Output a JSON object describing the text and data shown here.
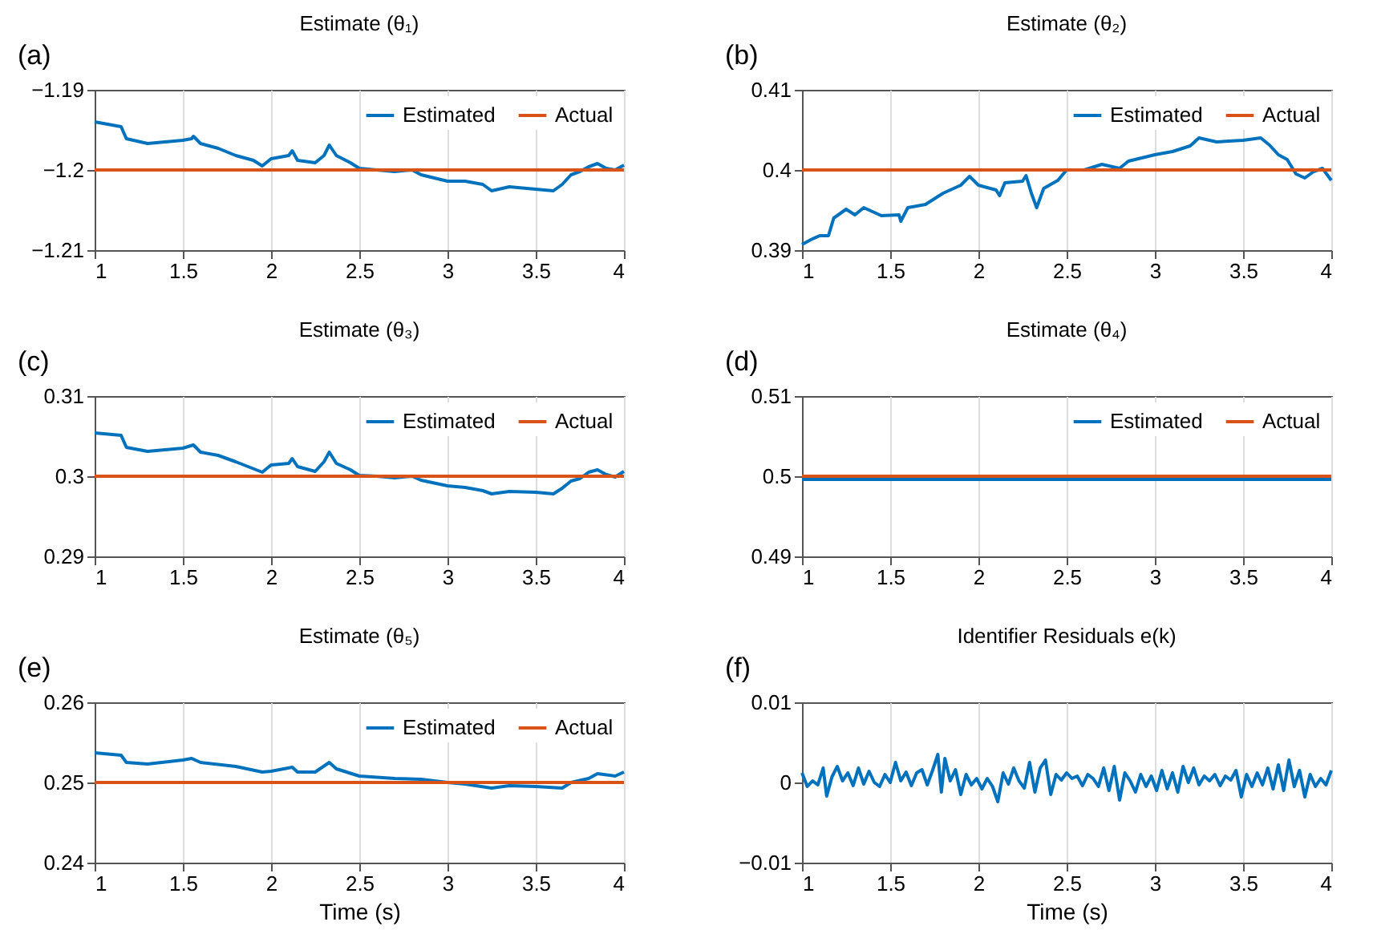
{
  "chart_data": [
    {
      "type": "line",
      "title": "Estimate (θ₁)",
      "annotations": [
        "(a)"
      ],
      "legend": "top right",
      "grid": "x",
      "xlim": [
        1,
        4
      ],
      "xticks": [
        1,
        1.5,
        2,
        2.5,
        3,
        3.5,
        4
      ],
      "ylim": [
        -1.21,
        -1.19
      ],
      "yticks": [
        {
          "value": -1.21,
          "label": "−1.21"
        },
        {
          "value": -1.2,
          "label": "−1.2"
        },
        {
          "value": -1.19,
          "label": "−1.19"
        }
      ],
      "x": [
        1.0,
        1.1,
        1.15,
        1.18,
        1.3,
        1.5,
        1.55,
        1.56,
        1.6,
        1.7,
        1.8,
        1.9,
        1.95,
        2.0,
        2.1,
        2.12,
        2.15,
        2.25,
        2.3,
        2.33,
        2.37,
        2.45,
        2.5,
        2.6,
        2.7,
        2.8,
        2.85,
        3.0,
        3.1,
        3.2,
        3.25,
        3.35,
        3.5,
        3.6,
        3.65,
        3.7,
        3.75,
        3.8,
        3.85,
        3.9,
        3.95,
        4.0
      ],
      "series": [
        {
          "name": "Estimated",
          "color": "#0072bd",
          "values": [
            -1.194,
            -1.1944,
            -1.1946,
            -1.1961,
            -1.1967,
            -1.1963,
            -1.1961,
            -1.1958,
            -1.1967,
            -1.1973,
            -1.1982,
            -1.1988,
            -1.1995,
            -1.1986,
            -1.1982,
            -1.1976,
            -1.1988,
            -1.1991,
            -1.1982,
            -1.1969,
            -1.1982,
            -1.1991,
            -1.1998,
            -1.2,
            -1.2002,
            -1.2,
            -1.2006,
            -1.2014,
            -1.2014,
            -1.2018,
            -1.2026,
            -1.2021,
            -1.2024,
            -1.2026,
            -1.2018,
            -1.2006,
            -1.2002,
            -1.1996,
            -1.1992,
            -1.1998,
            -1.2,
            -1.1994
          ]
        },
        {
          "name": "Actual",
          "color": "#d95319",
          "values": [
            -1.2,
            -1.2,
            -1.2,
            -1.2,
            -1.2,
            -1.2,
            -1.2,
            -1.2,
            -1.2,
            -1.2,
            -1.2,
            -1.2,
            -1.2,
            -1.2,
            -1.2,
            -1.2,
            -1.2,
            -1.2,
            -1.2,
            -1.2,
            -1.2,
            -1.2,
            -1.2,
            -1.2,
            -1.2,
            -1.2,
            -1.2,
            -1.2,
            -1.2,
            -1.2,
            -1.2,
            -1.2,
            -1.2,
            -1.2,
            -1.2,
            -1.2,
            -1.2,
            -1.2,
            -1.2,
            -1.2,
            -1.2,
            -1.2
          ]
        }
      ]
    },
    {
      "type": "line",
      "title": "Estimate (θ₂)",
      "annotations": [
        "(b)"
      ],
      "legend": "top right",
      "grid": "x",
      "xlim": [
        1,
        4
      ],
      "xticks": [
        1,
        1.5,
        2,
        2.5,
        3,
        3.5,
        4
      ],
      "ylim": [
        0.39,
        0.41
      ],
      "yticks": [
        0.39,
        0.4,
        0.41
      ],
      "x": [
        1.0,
        1.05,
        1.1,
        1.15,
        1.18,
        1.25,
        1.3,
        1.35,
        1.45,
        1.55,
        1.56,
        1.6,
        1.7,
        1.8,
        1.9,
        1.95,
        2.0,
        2.1,
        2.12,
        2.15,
        2.25,
        2.27,
        2.3,
        2.33,
        2.37,
        2.45,
        2.5,
        2.6,
        2.7,
        2.8,
        2.85,
        3.0,
        3.1,
        3.2,
        3.25,
        3.35,
        3.5,
        3.6,
        3.65,
        3.7,
        3.75,
        3.8,
        3.85,
        3.9,
        3.95,
        4.0
      ],
      "series": [
        {
          "name": "Estimated",
          "color": "#0072bd",
          "values": [
            0.3907,
            0.3913,
            0.3918,
            0.3918,
            0.394,
            0.3951,
            0.3944,
            0.3953,
            0.3943,
            0.3944,
            0.3936,
            0.3953,
            0.3957,
            0.3971,
            0.3981,
            0.3992,
            0.3981,
            0.3975,
            0.3968,
            0.3984,
            0.3986,
            0.3993,
            0.3971,
            0.3953,
            0.3977,
            0.3987,
            0.4,
            0.4,
            0.4007,
            0.4002,
            0.4011,
            0.4019,
            0.4023,
            0.403,
            0.404,
            0.4035,
            0.4037,
            0.404,
            0.4031,
            0.4019,
            0.4013,
            0.3995,
            0.399,
            0.3998,
            0.4002,
            0.3987
          ]
        },
        {
          "name": "Actual",
          "color": "#d95319",
          "values": [
            0.4,
            0.4,
            0.4,
            0.4,
            0.4,
            0.4,
            0.4,
            0.4,
            0.4,
            0.4,
            0.4,
            0.4,
            0.4,
            0.4,
            0.4,
            0.4,
            0.4,
            0.4,
            0.4,
            0.4,
            0.4,
            0.4,
            0.4,
            0.4,
            0.4,
            0.4,
            0.4,
            0.4,
            0.4,
            0.4,
            0.4,
            0.4,
            0.4,
            0.4,
            0.4,
            0.4,
            0.4,
            0.4,
            0.4,
            0.4,
            0.4,
            0.4,
            0.4,
            0.4,
            0.4,
            0.4
          ]
        }
      ]
    },
    {
      "type": "line",
      "title": "Estimate (θ₃)",
      "annotations": [
        "(c)"
      ],
      "legend": "top right",
      "grid": "x",
      "xlim": [
        1,
        4
      ],
      "xticks": [
        1,
        1.5,
        2,
        2.5,
        3,
        3.5,
        4
      ],
      "ylim": [
        0.29,
        0.31
      ],
      "yticks": [
        0.29,
        0.3,
        0.31
      ],
      "x": [
        1.0,
        1.15,
        1.18,
        1.3,
        1.5,
        1.56,
        1.6,
        1.7,
        1.8,
        1.95,
        2.0,
        2.1,
        2.12,
        2.15,
        2.25,
        2.3,
        2.33,
        2.37,
        2.45,
        2.5,
        2.6,
        2.7,
        2.8,
        2.85,
        3.0,
        3.1,
        3.2,
        3.25,
        3.35,
        3.5,
        3.6,
        3.65,
        3.7,
        3.75,
        3.8,
        3.85,
        3.9,
        3.95,
        4.0
      ],
      "series": [
        {
          "name": "Estimated",
          "color": "#0072bd",
          "values": [
            0.3054,
            0.3051,
            0.3036,
            0.3031,
            0.3035,
            0.3039,
            0.303,
            0.3026,
            0.3018,
            0.3005,
            0.3014,
            0.3016,
            0.3022,
            0.3012,
            0.3006,
            0.3018,
            0.303,
            0.3016,
            0.3008,
            0.3001,
            0.3,
            0.2998,
            0.3,
            0.2995,
            0.2988,
            0.2986,
            0.2982,
            0.2978,
            0.2981,
            0.298,
            0.2978,
            0.2985,
            0.2994,
            0.2997,
            0.3005,
            0.3008,
            0.3002,
            0.2999,
            0.3006
          ]
        },
        {
          "name": "Actual",
          "color": "#d95319",
          "values": [
            0.3,
            0.3,
            0.3,
            0.3,
            0.3,
            0.3,
            0.3,
            0.3,
            0.3,
            0.3,
            0.3,
            0.3,
            0.3,
            0.3,
            0.3,
            0.3,
            0.3,
            0.3,
            0.3,
            0.3,
            0.3,
            0.3,
            0.3,
            0.3,
            0.3,
            0.3,
            0.3,
            0.3,
            0.3,
            0.3,
            0.3,
            0.3,
            0.3,
            0.3,
            0.3,
            0.3,
            0.3,
            0.3,
            0.3
          ]
        }
      ]
    },
    {
      "type": "line",
      "title": "Estimate (θ₄)",
      "annotations": [
        "(d)"
      ],
      "legend": "top right",
      "grid": "x",
      "xlim": [
        1,
        4
      ],
      "xticks": [
        1,
        1.5,
        2,
        2.5,
        3,
        3.5,
        4
      ],
      "ylim": [
        0.49,
        0.51
      ],
      "yticks": [
        0.49,
        0.5,
        0.51
      ],
      "x": [
        1,
        4
      ],
      "series": [
        {
          "name": "Estimated",
          "color": "#0072bd",
          "values": [
            0.4996,
            0.4996
          ]
        },
        {
          "name": "Actual",
          "color": "#d95319",
          "values": [
            0.5,
            0.5
          ]
        }
      ]
    },
    {
      "type": "line",
      "title": "Estimate (θ₅)",
      "annotations": [
        "(e)"
      ],
      "legend": "top right",
      "grid": "x",
      "xlabel": "Time (s)",
      "xlim": [
        1,
        4
      ],
      "xticks": [
        1,
        1.5,
        2,
        2.5,
        3,
        3.5,
        4
      ],
      "ylim": [
        0.24,
        0.26
      ],
      "yticks": [
        0.24,
        0.25,
        0.26
      ],
      "x": [
        1.0,
        1.15,
        1.18,
        1.3,
        1.5,
        1.55,
        1.6,
        1.8,
        1.95,
        2.0,
        2.12,
        2.15,
        2.25,
        2.33,
        2.37,
        2.5,
        2.7,
        2.85,
        3.0,
        3.1,
        3.25,
        3.35,
        3.5,
        3.65,
        3.7,
        3.8,
        3.85,
        3.95,
        4.0
      ],
      "series": [
        {
          "name": "Estimated",
          "color": "#0072bd",
          "values": [
            0.2537,
            0.2534,
            0.2525,
            0.2523,
            0.2528,
            0.253,
            0.2525,
            0.252,
            0.2513,
            0.2514,
            0.2519,
            0.2513,
            0.2513,
            0.2525,
            0.2517,
            0.2508,
            0.2505,
            0.2504,
            0.25,
            0.2498,
            0.2493,
            0.2496,
            0.2495,
            0.2493,
            0.25,
            0.2505,
            0.2511,
            0.2508,
            0.2513
          ]
        },
        {
          "name": "Actual",
          "color": "#d95319",
          "values": [
            0.25,
            0.25,
            0.25,
            0.25,
            0.25,
            0.25,
            0.25,
            0.25,
            0.25,
            0.25,
            0.25,
            0.25,
            0.25,
            0.25,
            0.25,
            0.25,
            0.25,
            0.25,
            0.25,
            0.25,
            0.25,
            0.25,
            0.25,
            0.25,
            0.25,
            0.25,
            0.25,
            0.25,
            0.25
          ]
        }
      ]
    },
    {
      "type": "line",
      "title": "Identifier Residuals e(k)",
      "annotations": [
        "(f)"
      ],
      "grid": "x",
      "xlabel": "Time (s)",
      "xlim": [
        1,
        4
      ],
      "xticks": [
        1,
        1.5,
        2,
        2.5,
        3,
        3.5,
        4
      ],
      "ylim": [
        -0.01,
        0.01
      ],
      "yticks": [
        {
          "value": -0.01,
          "label": "−0.01"
        },
        0,
        0.01
      ],
      "x": [
        1.0,
        1.03,
        1.06,
        1.09,
        1.12,
        1.14,
        1.17,
        1.2,
        1.23,
        1.26,
        1.29,
        1.32,
        1.35,
        1.38,
        1.41,
        1.44,
        1.47,
        1.5,
        1.53,
        1.56,
        1.59,
        1.62,
        1.65,
        1.68,
        1.71,
        1.74,
        1.77,
        1.79,
        1.81,
        1.84,
        1.87,
        1.9,
        1.93,
        1.96,
        1.99,
        2.02,
        2.05,
        2.08,
        2.11,
        2.14,
        2.17,
        2.2,
        2.23,
        2.26,
        2.29,
        2.32,
        2.35,
        2.38,
        2.41,
        2.44,
        2.47,
        2.5,
        2.53,
        2.56,
        2.59,
        2.62,
        2.65,
        2.68,
        2.71,
        2.74,
        2.77,
        2.8,
        2.83,
        2.86,
        2.89,
        2.92,
        2.95,
        2.98,
        3.01,
        3.04,
        3.07,
        3.1,
        3.13,
        3.16,
        3.19,
        3.22,
        3.25,
        3.28,
        3.31,
        3.34,
        3.37,
        3.4,
        3.43,
        3.46,
        3.49,
        3.52,
        3.55,
        3.58,
        3.61,
        3.64,
        3.67,
        3.7,
        3.73,
        3.76,
        3.79,
        3.82,
        3.85,
        3.88,
        3.91,
        3.94,
        3.97,
        4.0
      ],
      "series": [
        {
          "color": "#0072bd",
          "values": [
            0.0012,
            -0.0005,
            0.0002,
            -0.0003,
            0.0018,
            -0.0017,
            0.0007,
            0.002,
            0.0002,
            0.0012,
            -0.0004,
            0.0018,
            -0.0002,
            0.0014,
            0.0,
            -0.0005,
            0.001,
            0.0,
            0.0025,
            0.0002,
            0.0013,
            -0.0004,
            0.0012,
            0.0016,
            -0.0003,
            0.0015,
            0.0035,
            -0.0012,
            0.003,
            0.0002,
            0.0016,
            -0.0015,
            0.001,
            -0.0003,
            0.0005,
            -0.0008,
            0.0005,
            -0.0005,
            -0.0024,
            0.0012,
            -0.0002,
            0.0018,
            0.0002,
            -0.0007,
            0.0025,
            -0.0012,
            0.0018,
            0.0028,
            -0.0015,
            0.001,
            0.0003,
            0.0012,
            0.0005,
            0.0008,
            -0.0004,
            0.001,
            0.0005,
            -0.0005,
            0.0018,
            -0.001,
            0.002,
            -0.0022,
            0.0012,
            0.0002,
            -0.0012,
            0.001,
            -0.0005,
            0.0008,
            -0.001,
            0.0015,
            -0.0008,
            0.0012,
            -0.0012,
            0.002,
            0.0,
            0.0018,
            -0.0003,
            0.0008,
            0.0002,
            0.001,
            -0.0004,
            0.0008,
            0.0003,
            0.0015,
            -0.0018,
            0.001,
            -0.0005,
            0.0012,
            -0.0003,
            0.0018,
            -0.0008,
            0.0022,
            -0.001,
            0.0028,
            -0.0005,
            0.0015,
            -0.0018,
            0.001,
            -0.0005,
            0.0005,
            -0.0003,
            0.0015
          ]
        }
      ]
    }
  ]
}
